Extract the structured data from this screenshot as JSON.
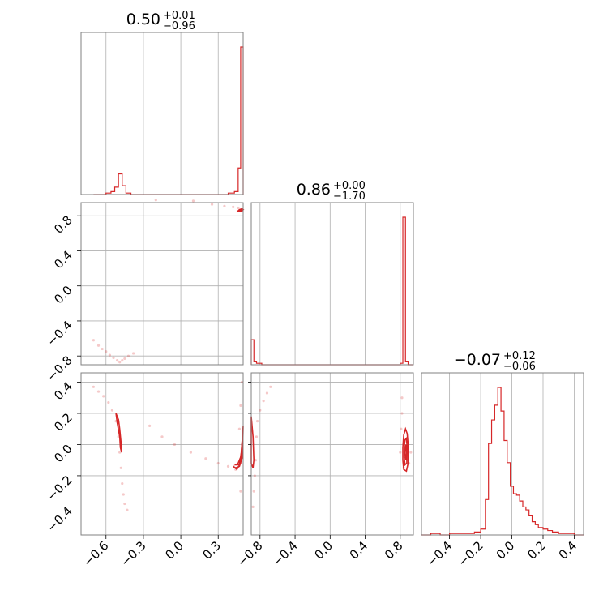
{
  "colors": {
    "series": "#d62728",
    "frame": "#808080",
    "grid": "#b0b0b0"
  },
  "chart_data": {
    "type": "corner",
    "parameters": [
      {
        "id": "p0",
        "title": {
          "value": "0.50",
          "plus": "+0.01",
          "minus": "−0.96"
        }
      },
      {
        "id": "p1",
        "title": {
          "value": "0.86",
          "plus": "+0.00",
          "minus": "−1.70"
        }
      },
      {
        "id": "p2",
        "title": {
          "value": "−0.07",
          "plus": "+0.12",
          "minus": "−0.06"
        }
      }
    ],
    "ranges": {
      "p0": [
        -0.8,
        0.5
      ],
      "p1": [
        -0.9,
        0.95
      ],
      "p2": [
        -0.58,
        0.46
      ]
    },
    "ticks": {
      "p0_x": [
        {
          "v": -0.6,
          "label": "−0.6"
        },
        {
          "v": -0.3,
          "label": "−0.3"
        },
        {
          "v": 0.0,
          "label": "0.0"
        },
        {
          "v": 0.3,
          "label": "0.3"
        }
      ],
      "p1_x": [
        {
          "v": -0.8,
          "label": "−0.8"
        },
        {
          "v": -0.4,
          "label": "−0.4"
        },
        {
          "v": 0.0,
          "label": "0.0"
        },
        {
          "v": 0.4,
          "label": "0.4"
        },
        {
          "v": 0.8,
          "label": "0.8"
        }
      ],
      "p2_x": [
        {
          "v": -0.4,
          "label": "−0.4"
        },
        {
          "v": -0.2,
          "label": "−0.2"
        },
        {
          "v": 0.0,
          "label": "0.0"
        },
        {
          "v": 0.2,
          "label": "0.2"
        },
        {
          "v": 0.4,
          "label": "0.4"
        }
      ],
      "p1_y": [
        {
          "v": -0.8,
          "label": "−0.8"
        },
        {
          "v": -0.4,
          "label": "−0.4"
        },
        {
          "v": 0.0,
          "label": "0.0"
        },
        {
          "v": 0.4,
          "label": "0.4"
        },
        {
          "v": 0.8,
          "label": "0.8"
        }
      ],
      "p2_y": [
        {
          "v": -0.4,
          "label": "−0.4"
        },
        {
          "v": -0.2,
          "label": "−0.2"
        },
        {
          "v": 0.0,
          "label": "0.0"
        },
        {
          "v": 0.2,
          "label": "0.2"
        },
        {
          "v": 0.4,
          "label": "0.4"
        }
      ]
    },
    "histograms": {
      "p0": {
        "bins": [
          [
            -0.7,
            -0.65,
            0.0
          ],
          [
            -0.65,
            -0.6,
            0.0
          ],
          [
            -0.6,
            -0.56,
            0.01
          ],
          [
            -0.56,
            -0.53,
            0.02
          ],
          [
            -0.53,
            -0.5,
            0.05
          ],
          [
            -0.5,
            -0.47,
            0.14
          ],
          [
            -0.47,
            -0.44,
            0.06
          ],
          [
            -0.44,
            -0.4,
            0.01
          ],
          [
            -0.4,
            -0.2,
            0.0
          ],
          [
            -0.2,
            0.0,
            0.0
          ],
          [
            0.0,
            0.2,
            0.0
          ],
          [
            0.2,
            0.38,
            0.0
          ],
          [
            0.38,
            0.43,
            0.01
          ],
          [
            0.43,
            0.46,
            0.02
          ],
          [
            0.46,
            0.48,
            0.18
          ],
          [
            0.48,
            0.5,
            1.0
          ]
        ]
      },
      "p1": {
        "bins": [
          [
            -0.9,
            -0.87,
            0.17
          ],
          [
            -0.87,
            -0.84,
            0.02
          ],
          [
            -0.84,
            -0.78,
            0.01
          ],
          [
            -0.78,
            -0.4,
            0.0
          ],
          [
            -0.4,
            0.0,
            0.0
          ],
          [
            0.0,
            0.4,
            0.0
          ],
          [
            0.4,
            0.8,
            0.0
          ],
          [
            0.8,
            0.83,
            0.01
          ],
          [
            0.83,
            0.86,
            1.0
          ],
          [
            0.86,
            0.89,
            0.02
          ],
          [
            0.89,
            0.95,
            0.0
          ]
        ]
      },
      "p2": {
        "bins": [
          [
            -0.58,
            -0.52,
            0.0
          ],
          [
            -0.52,
            -0.46,
            0.01
          ],
          [
            -0.46,
            -0.4,
            0.0
          ],
          [
            -0.4,
            -0.34,
            0.01
          ],
          [
            -0.34,
            -0.28,
            0.01
          ],
          [
            -0.28,
            -0.24,
            0.01
          ],
          [
            -0.24,
            -0.2,
            0.02
          ],
          [
            -0.2,
            -0.17,
            0.04
          ],
          [
            -0.17,
            -0.15,
            0.24
          ],
          [
            -0.15,
            -0.13,
            0.62
          ],
          [
            -0.13,
            -0.11,
            0.78
          ],
          [
            -0.11,
            -0.09,
            0.88
          ],
          [
            -0.09,
            -0.07,
            1.0
          ],
          [
            -0.07,
            -0.05,
            0.84
          ],
          [
            -0.05,
            -0.03,
            0.64
          ],
          [
            -0.03,
            -0.01,
            0.49
          ],
          [
            -0.01,
            0.01,
            0.33
          ],
          [
            0.01,
            0.03,
            0.28
          ],
          [
            0.03,
            0.05,
            0.27
          ],
          [
            0.05,
            0.07,
            0.23
          ],
          [
            0.07,
            0.09,
            0.19
          ],
          [
            0.09,
            0.11,
            0.17
          ],
          [
            0.11,
            0.13,
            0.13
          ],
          [
            0.13,
            0.15,
            0.09
          ],
          [
            0.15,
            0.17,
            0.07
          ],
          [
            0.17,
            0.2,
            0.05
          ],
          [
            0.2,
            0.23,
            0.04
          ],
          [
            0.23,
            0.26,
            0.03
          ],
          [
            0.26,
            0.3,
            0.02
          ],
          [
            0.3,
            0.35,
            0.01
          ],
          [
            0.35,
            0.4,
            0.01
          ],
          [
            0.4,
            0.46,
            0.0
          ]
        ]
      }
    },
    "scatter": {
      "p1_vs_p0": [
        [
          -0.7,
          -0.62
        ],
        [
          -0.66,
          -0.68
        ],
        [
          -0.63,
          -0.72
        ],
        [
          -0.6,
          -0.75
        ],
        [
          -0.57,
          -0.79
        ],
        [
          -0.54,
          -0.82
        ],
        [
          -0.51,
          -0.85
        ],
        [
          -0.49,
          -0.87
        ],
        [
          -0.47,
          -0.85
        ],
        [
          -0.45,
          -0.83
        ],
        [
          -0.42,
          -0.8
        ],
        [
          -0.38,
          -0.77
        ],
        [
          -0.2,
          0.98
        ],
        [
          0.1,
          0.97
        ],
        [
          0.25,
          0.93
        ],
        [
          0.35,
          0.91
        ],
        [
          0.42,
          0.9
        ],
        [
          0.46,
          0.89
        ]
      ],
      "p2_vs_p0": [
        [
          -0.7,
          0.37
        ],
        [
          -0.66,
          0.34
        ],
        [
          -0.62,
          0.31
        ],
        [
          -0.58,
          0.27
        ],
        [
          -0.55,
          0.22
        ],
        [
          -0.52,
          0.15
        ],
        [
          -0.5,
          0.05
        ],
        [
          -0.49,
          -0.05
        ],
        [
          -0.48,
          -0.15
        ],
        [
          -0.47,
          -0.25
        ],
        [
          -0.46,
          -0.32
        ],
        [
          -0.45,
          -0.38
        ],
        [
          -0.43,
          -0.42
        ],
        [
          -0.25,
          0.12
        ],
        [
          -0.15,
          0.05
        ],
        [
          -0.05,
          0.0
        ],
        [
          0.08,
          -0.05
        ],
        [
          0.2,
          -0.09
        ],
        [
          0.3,
          -0.12
        ],
        [
          0.38,
          -0.14
        ],
        [
          0.44,
          -0.16
        ],
        [
          0.47,
          0.1
        ],
        [
          0.48,
          0.25
        ],
        [
          0.49,
          0.4
        ],
        [
          0.48,
          -0.3
        ]
      ],
      "p2_vs_p1": [
        [
          -0.88,
          -0.4
        ],
        [
          -0.87,
          -0.3
        ],
        [
          -0.86,
          -0.2
        ],
        [
          -0.85,
          -0.1
        ],
        [
          -0.84,
          0.05
        ],
        [
          -0.83,
          0.15
        ],
        [
          -0.8,
          0.22
        ],
        [
          -0.76,
          0.28
        ],
        [
          -0.72,
          0.33
        ],
        [
          -0.68,
          0.37
        ],
        [
          0.82,
          0.3
        ],
        [
          0.82,
          0.2
        ],
        [
          0.81,
          0.1
        ],
        [
          0.8,
          -0.05
        ],
        [
          0.84,
          -0.15
        ],
        [
          0.88,
          -0.1
        ],
        [
          0.9,
          -0.12
        ],
        [
          0.92,
          -0.05
        ]
      ]
    },
    "contours": {
      "p1_vs_p0": [
        [
          [
            0.455,
            0.85
          ],
          [
            0.47,
            0.87
          ],
          [
            0.49,
            0.88
          ],
          [
            0.5,
            0.87
          ],
          [
            0.49,
            0.855
          ],
          [
            0.47,
            0.85
          ],
          [
            0.455,
            0.85
          ]
        ],
        [
          [
            0.47,
            0.86
          ],
          [
            0.485,
            0.872
          ],
          [
            0.498,
            0.868
          ],
          [
            0.49,
            0.858
          ],
          [
            0.47,
            0.86
          ]
        ]
      ],
      "p2_vs_p0": [
        [
          [
            -0.52,
            0.2
          ],
          [
            -0.51,
            0.14
          ],
          [
            -0.49,
            0.05
          ],
          [
            -0.485,
            -0.02
          ],
          [
            -0.475,
            -0.05
          ],
          [
            -0.48,
            0.02
          ],
          [
            -0.49,
            0.1
          ],
          [
            -0.5,
            0.16
          ],
          [
            -0.52,
            0.2
          ]
        ],
        [
          [
            0.42,
            -0.14
          ],
          [
            0.45,
            -0.16
          ],
          [
            0.48,
            -0.12
          ],
          [
            0.49,
            0.0
          ],
          [
            0.5,
            0.12
          ],
          [
            0.495,
            -0.08
          ],
          [
            0.47,
            -0.14
          ],
          [
            0.44,
            -0.15
          ],
          [
            0.42,
            -0.14
          ]
        ],
        [
          [
            0.44,
            -0.13
          ],
          [
            0.47,
            -0.13
          ],
          [
            0.485,
            -0.05
          ],
          [
            0.495,
            0.05
          ],
          [
            0.49,
            -0.06
          ],
          [
            0.46,
            -0.12
          ],
          [
            0.44,
            -0.13
          ]
        ]
      ],
      "p2_vs_p1": [
        [
          [
            -0.9,
            0.18
          ],
          [
            -0.88,
            0.05
          ],
          [
            -0.87,
            -0.1
          ],
          [
            -0.88,
            -0.15
          ],
          [
            -0.9,
            -0.12
          ],
          [
            -0.9,
            0.05
          ],
          [
            -0.9,
            0.18
          ]
        ],
        [
          [
            0.83,
            -0.1
          ],
          [
            0.84,
            -0.16
          ],
          [
            0.87,
            -0.17
          ],
          [
            0.89,
            -0.12
          ],
          [
            0.89,
            0.0
          ],
          [
            0.88,
            0.07
          ],
          [
            0.86,
            0.1
          ],
          [
            0.84,
            0.06
          ],
          [
            0.83,
            -0.02
          ],
          [
            0.83,
            -0.1
          ]
        ],
        [
          [
            0.845,
            -0.08
          ],
          [
            0.855,
            -0.13
          ],
          [
            0.875,
            -0.12
          ],
          [
            0.88,
            -0.02
          ],
          [
            0.87,
            0.04
          ],
          [
            0.855,
            0.03
          ],
          [
            0.845,
            -0.02
          ],
          [
            0.845,
            -0.08
          ]
        ],
        [
          [
            0.855,
            -0.06
          ],
          [
            0.865,
            -0.1
          ],
          [
            0.872,
            -0.05
          ],
          [
            0.866,
            0.0
          ],
          [
            0.858,
            -0.02
          ],
          [
            0.855,
            -0.06
          ]
        ]
      ]
    }
  }
}
